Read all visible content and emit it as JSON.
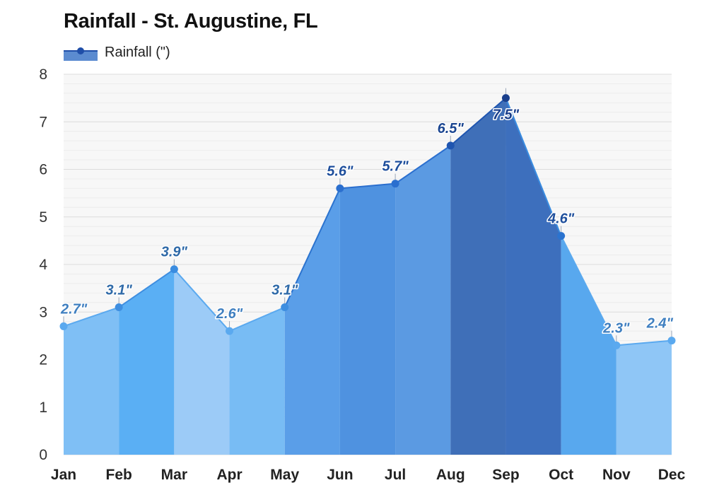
{
  "title": "Rainfall - St. Augustine, FL",
  "legend": {
    "label": "Rainfall (\")",
    "marker_color": "#1f4ea8",
    "swatch_color": "#5b8bd0"
  },
  "chart_data": {
    "type": "area",
    "title": "Rainfall - St. Augustine, FL",
    "categories": [
      "Jan",
      "Feb",
      "Mar",
      "Apr",
      "May",
      "Jun",
      "Jul",
      "Aug",
      "Sep",
      "Oct",
      "Nov",
      "Dec"
    ],
    "series": [
      {
        "name": "Rainfall (\")",
        "values": [
          2.7,
          3.1,
          3.9,
          2.6,
          3.1,
          5.6,
          5.7,
          6.5,
          7.5,
          4.6,
          2.3,
          2.4
        ]
      }
    ],
    "data_labels": [
      "2.7\"",
      "3.1\"",
      "3.9\"",
      "2.6\"",
      "3.1\"",
      "5.6\"",
      "5.7\"",
      "6.5\"",
      "7.5\"",
      "4.6\"",
      "2.3\"",
      "2.4\""
    ],
    "ylim": [
      0,
      8
    ],
    "yticks": [
      "0",
      "1",
      "2",
      "3",
      "4",
      "5",
      "6",
      "7",
      "8"
    ],
    "grid": true,
    "legend_position": "top-left",
    "colors": {
      "band_fills": [
        "#7fbff5",
        "#5aaff4",
        "#9ccbf7",
        "#78bcf4",
        "#5a9ee8",
        "#4f92e0",
        "#5b9ae2",
        "#3f6fb8",
        "#3d6fbd",
        "#58a8ee",
        "#8fc6f6",
        "#95c9f6"
      ],
      "point_colors": [
        "#5aa9ef",
        "#3e8ee0",
        "#3a8ce0",
        "#5aa9ef",
        "#3e8ee0",
        "#2b6fcf",
        "#2b6fcf",
        "#1f55b0",
        "#1a3f8c",
        "#2b73cf",
        "#5aa9ef",
        "#5aa9ef"
      ],
      "line_colors": [
        "#5aa9ef",
        "#3e8ee0",
        "#5aa9ef",
        "#5aa9ef",
        "#2b73cf",
        "#2b6fcf",
        "#2b6fcf",
        "#1f55b0",
        "#3a8ce0",
        "#5aa9ef",
        "#5aa9ef"
      ],
      "label_colors": [
        "#3f7fc0",
        "#2f6aa8",
        "#2f6aa8",
        "#3f7fc0",
        "#2f6aa8",
        "#1f4f9c",
        "#1f4f9c",
        "#1a4590",
        "#1a3f8c",
        "#1f4f9c",
        "#3f7fc0",
        "#3f7fc0"
      ]
    }
  }
}
